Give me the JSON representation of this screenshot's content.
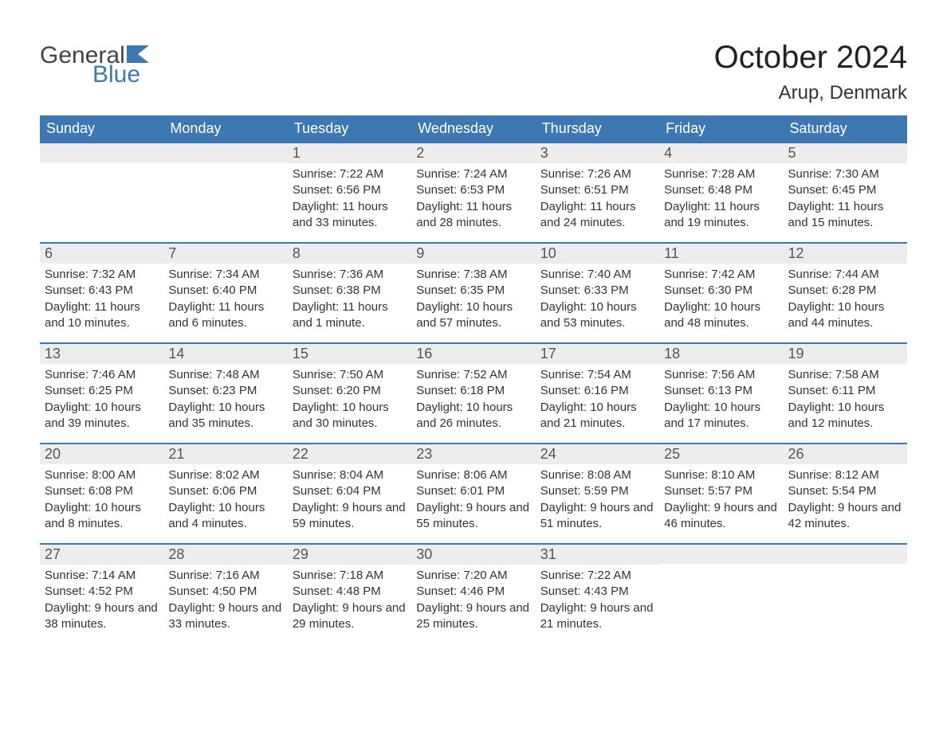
{
  "logo": {
    "word1": "General",
    "word2": "Blue"
  },
  "title": "October 2024",
  "location": "Arup, Denmark",
  "colors": {
    "header_bg": "#3e78b3",
    "header_text": "#ffffff",
    "daynum_bg": "#ededed",
    "border": "#3e78b3",
    "body_text": "#333333",
    "logo_blue": "#3e78b3"
  },
  "weekdays": [
    "Sunday",
    "Monday",
    "Tuesday",
    "Wednesday",
    "Thursday",
    "Friday",
    "Saturday"
  ],
  "weeks": [
    [
      {
        "num": "",
        "sunrise": "",
        "sunset": "",
        "daylight": ""
      },
      {
        "num": "",
        "sunrise": "",
        "sunset": "",
        "daylight": ""
      },
      {
        "num": "1",
        "sunrise": "Sunrise: 7:22 AM",
        "sunset": "Sunset: 6:56 PM",
        "daylight": "Daylight: 11 hours and 33 minutes."
      },
      {
        "num": "2",
        "sunrise": "Sunrise: 7:24 AM",
        "sunset": "Sunset: 6:53 PM",
        "daylight": "Daylight: 11 hours and 28 minutes."
      },
      {
        "num": "3",
        "sunrise": "Sunrise: 7:26 AM",
        "sunset": "Sunset: 6:51 PM",
        "daylight": "Daylight: 11 hours and 24 minutes."
      },
      {
        "num": "4",
        "sunrise": "Sunrise: 7:28 AM",
        "sunset": "Sunset: 6:48 PM",
        "daylight": "Daylight: 11 hours and 19 minutes."
      },
      {
        "num": "5",
        "sunrise": "Sunrise: 7:30 AM",
        "sunset": "Sunset: 6:45 PM",
        "daylight": "Daylight: 11 hours and 15 minutes."
      }
    ],
    [
      {
        "num": "6",
        "sunrise": "Sunrise: 7:32 AM",
        "sunset": "Sunset: 6:43 PM",
        "daylight": "Daylight: 11 hours and 10 minutes."
      },
      {
        "num": "7",
        "sunrise": "Sunrise: 7:34 AM",
        "sunset": "Sunset: 6:40 PM",
        "daylight": "Daylight: 11 hours and 6 minutes."
      },
      {
        "num": "8",
        "sunrise": "Sunrise: 7:36 AM",
        "sunset": "Sunset: 6:38 PM",
        "daylight": "Daylight: 11 hours and 1 minute."
      },
      {
        "num": "9",
        "sunrise": "Sunrise: 7:38 AM",
        "sunset": "Sunset: 6:35 PM",
        "daylight": "Daylight: 10 hours and 57 minutes."
      },
      {
        "num": "10",
        "sunrise": "Sunrise: 7:40 AM",
        "sunset": "Sunset: 6:33 PM",
        "daylight": "Daylight: 10 hours and 53 minutes."
      },
      {
        "num": "11",
        "sunrise": "Sunrise: 7:42 AM",
        "sunset": "Sunset: 6:30 PM",
        "daylight": "Daylight: 10 hours and 48 minutes."
      },
      {
        "num": "12",
        "sunrise": "Sunrise: 7:44 AM",
        "sunset": "Sunset: 6:28 PM",
        "daylight": "Daylight: 10 hours and 44 minutes."
      }
    ],
    [
      {
        "num": "13",
        "sunrise": "Sunrise: 7:46 AM",
        "sunset": "Sunset: 6:25 PM",
        "daylight": "Daylight: 10 hours and 39 minutes."
      },
      {
        "num": "14",
        "sunrise": "Sunrise: 7:48 AM",
        "sunset": "Sunset: 6:23 PM",
        "daylight": "Daylight: 10 hours and 35 minutes."
      },
      {
        "num": "15",
        "sunrise": "Sunrise: 7:50 AM",
        "sunset": "Sunset: 6:20 PM",
        "daylight": "Daylight: 10 hours and 30 minutes."
      },
      {
        "num": "16",
        "sunrise": "Sunrise: 7:52 AM",
        "sunset": "Sunset: 6:18 PM",
        "daylight": "Daylight: 10 hours and 26 minutes."
      },
      {
        "num": "17",
        "sunrise": "Sunrise: 7:54 AM",
        "sunset": "Sunset: 6:16 PM",
        "daylight": "Daylight: 10 hours and 21 minutes."
      },
      {
        "num": "18",
        "sunrise": "Sunrise: 7:56 AM",
        "sunset": "Sunset: 6:13 PM",
        "daylight": "Daylight: 10 hours and 17 minutes."
      },
      {
        "num": "19",
        "sunrise": "Sunrise: 7:58 AM",
        "sunset": "Sunset: 6:11 PM",
        "daylight": "Daylight: 10 hours and 12 minutes."
      }
    ],
    [
      {
        "num": "20",
        "sunrise": "Sunrise: 8:00 AM",
        "sunset": "Sunset: 6:08 PM",
        "daylight": "Daylight: 10 hours and 8 minutes."
      },
      {
        "num": "21",
        "sunrise": "Sunrise: 8:02 AM",
        "sunset": "Sunset: 6:06 PM",
        "daylight": "Daylight: 10 hours and 4 minutes."
      },
      {
        "num": "22",
        "sunrise": "Sunrise: 8:04 AM",
        "sunset": "Sunset: 6:04 PM",
        "daylight": "Daylight: 9 hours and 59 minutes."
      },
      {
        "num": "23",
        "sunrise": "Sunrise: 8:06 AM",
        "sunset": "Sunset: 6:01 PM",
        "daylight": "Daylight: 9 hours and 55 minutes."
      },
      {
        "num": "24",
        "sunrise": "Sunrise: 8:08 AM",
        "sunset": "Sunset: 5:59 PM",
        "daylight": "Daylight: 9 hours and 51 minutes."
      },
      {
        "num": "25",
        "sunrise": "Sunrise: 8:10 AM",
        "sunset": "Sunset: 5:57 PM",
        "daylight": "Daylight: 9 hours and 46 minutes."
      },
      {
        "num": "26",
        "sunrise": "Sunrise: 8:12 AM",
        "sunset": "Sunset: 5:54 PM",
        "daylight": "Daylight: 9 hours and 42 minutes."
      }
    ],
    [
      {
        "num": "27",
        "sunrise": "Sunrise: 7:14 AM",
        "sunset": "Sunset: 4:52 PM",
        "daylight": "Daylight: 9 hours and 38 minutes."
      },
      {
        "num": "28",
        "sunrise": "Sunrise: 7:16 AM",
        "sunset": "Sunset: 4:50 PM",
        "daylight": "Daylight: 9 hours and 33 minutes."
      },
      {
        "num": "29",
        "sunrise": "Sunrise: 7:18 AM",
        "sunset": "Sunset: 4:48 PM",
        "daylight": "Daylight: 9 hours and 29 minutes."
      },
      {
        "num": "30",
        "sunrise": "Sunrise: 7:20 AM",
        "sunset": "Sunset: 4:46 PM",
        "daylight": "Daylight: 9 hours and 25 minutes."
      },
      {
        "num": "31",
        "sunrise": "Sunrise: 7:22 AM",
        "sunset": "Sunset: 4:43 PM",
        "daylight": "Daylight: 9 hours and 21 minutes."
      },
      {
        "num": "",
        "sunrise": "",
        "sunset": "",
        "daylight": ""
      },
      {
        "num": "",
        "sunrise": "",
        "sunset": "",
        "daylight": ""
      }
    ]
  ]
}
